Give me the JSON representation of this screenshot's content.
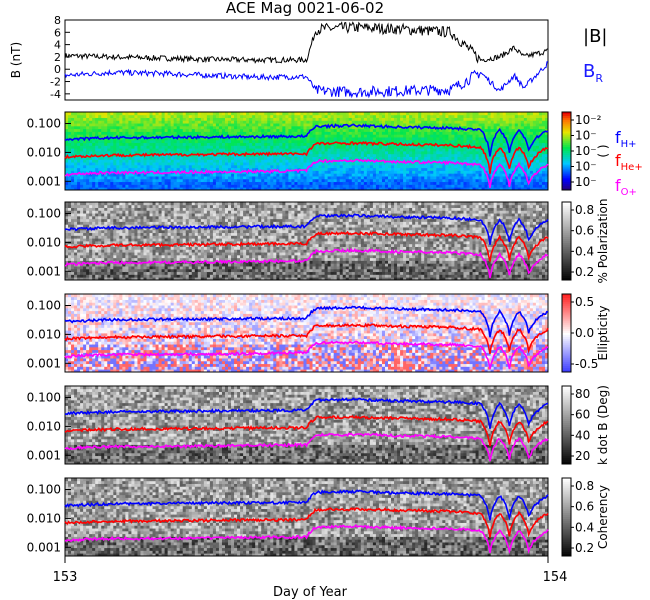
{
  "chart_data": [
    {
      "type": "line",
      "title": "ACE Mag 0021-06-02",
      "ylabel": "B (nT)",
      "ylim": [
        -5,
        8
      ],
      "yticks": [
        "8",
        "6",
        "4",
        "2",
        "0",
        "-2",
        "-4"
      ],
      "series": [
        {
          "name": "|B|",
          "color": "#000000",
          "x": [
            153.0,
            153.1,
            153.2,
            153.3,
            153.4,
            153.5,
            153.52,
            153.6,
            153.7,
            153.8,
            153.86,
            153.9,
            153.93,
            153.95,
            154.0
          ],
          "y": [
            2.2,
            2.0,
            1.8,
            1.6,
            1.5,
            1.5,
            6.5,
            6.8,
            6.5,
            6.0,
            1.5,
            2.0,
            3.5,
            2.0,
            3.0
          ]
        },
        {
          "name": "B_R",
          "color": "#0000ff",
          "x": [
            153.0,
            153.1,
            153.2,
            153.3,
            153.4,
            153.5,
            153.52,
            153.6,
            153.7,
            153.8,
            153.86,
            153.9,
            153.93,
            153.95,
            154.0
          ],
          "y": [
            -1.0,
            -0.5,
            -0.7,
            -1.0,
            -1.3,
            -1.2,
            -3.5,
            -3.7,
            -3.5,
            -3.3,
            -0.5,
            -3.5,
            -1.0,
            -3.0,
            1.0
          ]
        }
      ],
      "legend": [
        "|B|",
        "B_R"
      ]
    },
    {
      "type": "heatmap",
      "colorbar_label": "(  )",
      "colorbar_ticks": [
        "10⁻²",
        "10⁻",
        "10⁻",
        "10⁻",
        "10⁻"
      ],
      "ylog": true,
      "yticks": [
        "0.100",
        "0.010",
        "0.001"
      ],
      "overlays": [
        "f_H+",
        "f_He+",
        "f_O+"
      ]
    },
    {
      "type": "heatmap",
      "colorbar_label": "% Polarization",
      "colorbar_ticks": [
        "0.8",
        "0.6",
        "0.4",
        "0.2"
      ],
      "ylog": true,
      "yticks": [
        "0.100",
        "0.010",
        "0.001"
      ]
    },
    {
      "type": "heatmap",
      "colorbar_label": "Ellipticity",
      "colorbar_ticks": [
        "0.5",
        "0.0",
        "-0.5"
      ],
      "ylog": true,
      "yticks": [
        "0.100",
        "0.010",
        "0.001"
      ]
    },
    {
      "type": "heatmap",
      "colorbar_label": "k dot B (Deg)",
      "colorbar_ticks": [
        "80",
        "60",
        "40",
        "20"
      ],
      "ylog": true,
      "yticks": [
        "0.100",
        "0.010",
        "0.001"
      ]
    },
    {
      "type": "heatmap",
      "colorbar_label": "Coherency",
      "colorbar_ticks": [
        "0.8",
        "0.6",
        "0.4",
        "0.2"
      ],
      "ylog": true,
      "yticks": [
        "0.100",
        "0.010",
        "0.001"
      ],
      "xlabel": "Day of Year",
      "xlim": [
        153,
        154
      ],
      "xticks": [
        "153",
        "154"
      ]
    }
  ],
  "overlay_lines": [
    {
      "name": "f_H+",
      "color": "#0000ff",
      "x": [
        153.0,
        153.05,
        153.1,
        153.2,
        153.3,
        153.4,
        153.5,
        153.52,
        153.6,
        153.7,
        153.8,
        153.86,
        153.88,
        153.9,
        153.92,
        153.94,
        153.96,
        154.0
      ],
      "y": [
        0.028,
        0.03,
        0.032,
        0.033,
        0.034,
        0.035,
        0.036,
        0.08,
        0.085,
        0.075,
        0.07,
        0.06,
        0.008,
        0.06,
        0.01,
        0.06,
        0.012,
        0.06
      ]
    },
    {
      "name": "f_He+",
      "color": "#ff0000",
      "x": [
        153.0,
        153.05,
        153.1,
        153.2,
        153.3,
        153.4,
        153.5,
        153.52,
        153.6,
        153.7,
        153.8,
        153.86,
        153.88,
        153.9,
        153.92,
        153.94,
        153.96,
        154.0
      ],
      "y": [
        0.007,
        0.0075,
        0.008,
        0.0082,
        0.0085,
        0.0088,
        0.009,
        0.02,
        0.021,
        0.019,
        0.0175,
        0.015,
        0.002,
        0.015,
        0.0025,
        0.015,
        0.003,
        0.015
      ]
    },
    {
      "name": "f_O+",
      "color": "#ff00ff",
      "x": [
        153.0,
        153.05,
        153.1,
        153.2,
        153.3,
        153.4,
        153.5,
        153.52,
        153.6,
        153.7,
        153.8,
        153.86,
        153.88,
        153.9,
        153.92,
        153.94,
        153.96,
        154.0
      ],
      "y": [
        0.0017,
        0.0019,
        0.002,
        0.002,
        0.0021,
        0.0022,
        0.0023,
        0.005,
        0.0053,
        0.0047,
        0.0044,
        0.0038,
        0.0006,
        0.0038,
        0.0007,
        0.0038,
        0.0008,
        0.0038
      ]
    }
  ],
  "legend_labels": {
    "B": "|B|",
    "BR": "B",
    "BR_sub": "R",
    "fH": "f",
    "fH_sub": "H+",
    "fHe": "f",
    "fHe_sub": "He+",
    "fO": "f",
    "fO_sub": "O+"
  },
  "colors": {
    "H": "#0000ff",
    "He": "#ff0000",
    "O": "#ff00ff",
    "B": "#000000",
    "BR": "#0000ff"
  }
}
